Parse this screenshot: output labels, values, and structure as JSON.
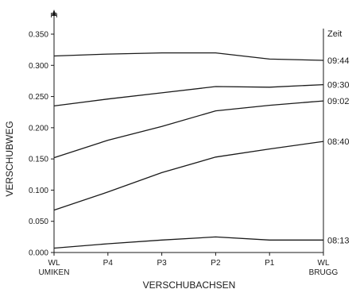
{
  "chart_data": {
    "type": "line",
    "xlabel": "VERSCHUBACHSEN",
    "ylabel": "VERSCHUBWEG",
    "y_unit": "m",
    "legend_title": "Zeit",
    "ylim": [
      0,
      0.35
    ],
    "y_ticks": [
      "0.000",
      "0.050",
      "0.100",
      "0.150",
      "0.200",
      "0.250",
      "0.300",
      "0.350"
    ],
    "categories": [
      [
        "WL",
        "UMIKEN"
      ],
      [
        "P4"
      ],
      [
        "P3"
      ],
      [
        "P2"
      ],
      [
        "P1"
      ],
      [
        "WL",
        "BRUGG"
      ]
    ],
    "series": [
      {
        "name": "08:13",
        "values": [
          0.007,
          0.014,
          0.02,
          0.025,
          0.02,
          0.02
        ]
      },
      {
        "name": "08:40",
        "values": [
          0.068,
          0.097,
          0.128,
          0.153,
          0.166,
          0.178
        ]
      },
      {
        "name": "09:02",
        "values": [
          0.152,
          0.18,
          0.202,
          0.227,
          0.236,
          0.243
        ]
      },
      {
        "name": "09:30",
        "values": [
          0.235,
          0.246,
          0.256,
          0.266,
          0.265,
          0.269
        ]
      },
      {
        "name": "09:44",
        "values": [
          0.315,
          0.318,
          0.32,
          0.32,
          0.31,
          0.308
        ]
      }
    ],
    "line_color": "#1a1a1a",
    "grid": false
  }
}
